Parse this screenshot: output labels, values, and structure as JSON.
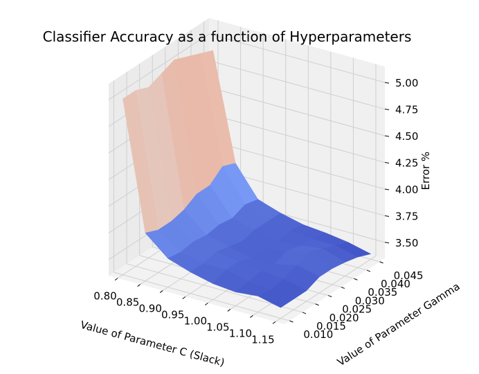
{
  "chart_data": {
    "type": "surface3d",
    "title": "Classifier Accuracy as a function of Hyperparameters",
    "xlabel": "Value of Parameter C (Slack)",
    "ylabel": "Value of Parameter Gamma",
    "zlabel": "Error %",
    "x_ticks": [
      "0.80",
      "0.85",
      "0.90",
      "0.95",
      "1.00",
      "1.05",
      "1.10",
      "1.15"
    ],
    "y_ticks": [
      "0.010",
      "0.015",
      "0.020",
      "0.025",
      "0.030",
      "0.035",
      "0.040",
      "0.045"
    ],
    "z_ticks": [
      "3.50",
      "3.75",
      "4.00",
      "4.25",
      "4.50",
      "4.75",
      "5.00"
    ],
    "x": [
      0.8,
      0.85,
      0.9,
      0.95,
      1.0,
      1.05,
      1.1,
      1.15
    ],
    "y": [
      0.01,
      0.015,
      0.02,
      0.025,
      0.03,
      0.035,
      0.04,
      0.045
    ],
    "z": [
      [
        5.0,
        3.8,
        3.62,
        3.55,
        3.5,
        3.48,
        3.5,
        3.45
      ],
      [
        5.0,
        3.75,
        3.6,
        3.55,
        3.55,
        3.5,
        3.48,
        3.45
      ],
      [
        4.95,
        3.75,
        3.62,
        3.58,
        3.55,
        3.52,
        3.5,
        3.45
      ],
      [
        5.0,
        3.78,
        3.6,
        3.55,
        3.5,
        3.5,
        3.55,
        3.5
      ],
      [
        5.05,
        3.85,
        3.62,
        3.52,
        3.5,
        3.55,
        3.6,
        3.5
      ],
      [
        5.0,
        3.85,
        3.6,
        3.55,
        3.5,
        3.52,
        3.55,
        3.48
      ],
      [
        4.95,
        3.95,
        3.65,
        3.55,
        3.52,
        3.5,
        3.5,
        3.45
      ],
      [
        4.9,
        3.9,
        3.62,
        3.55,
        3.5,
        3.48,
        3.45,
        3.4
      ]
    ],
    "colormap": "coolwarm",
    "xlim": [
      0.78,
      1.17
    ],
    "ylim": [
      0.008,
      0.047
    ],
    "zlim": [
      3.35,
      5.15
    ],
    "grid": true
  }
}
